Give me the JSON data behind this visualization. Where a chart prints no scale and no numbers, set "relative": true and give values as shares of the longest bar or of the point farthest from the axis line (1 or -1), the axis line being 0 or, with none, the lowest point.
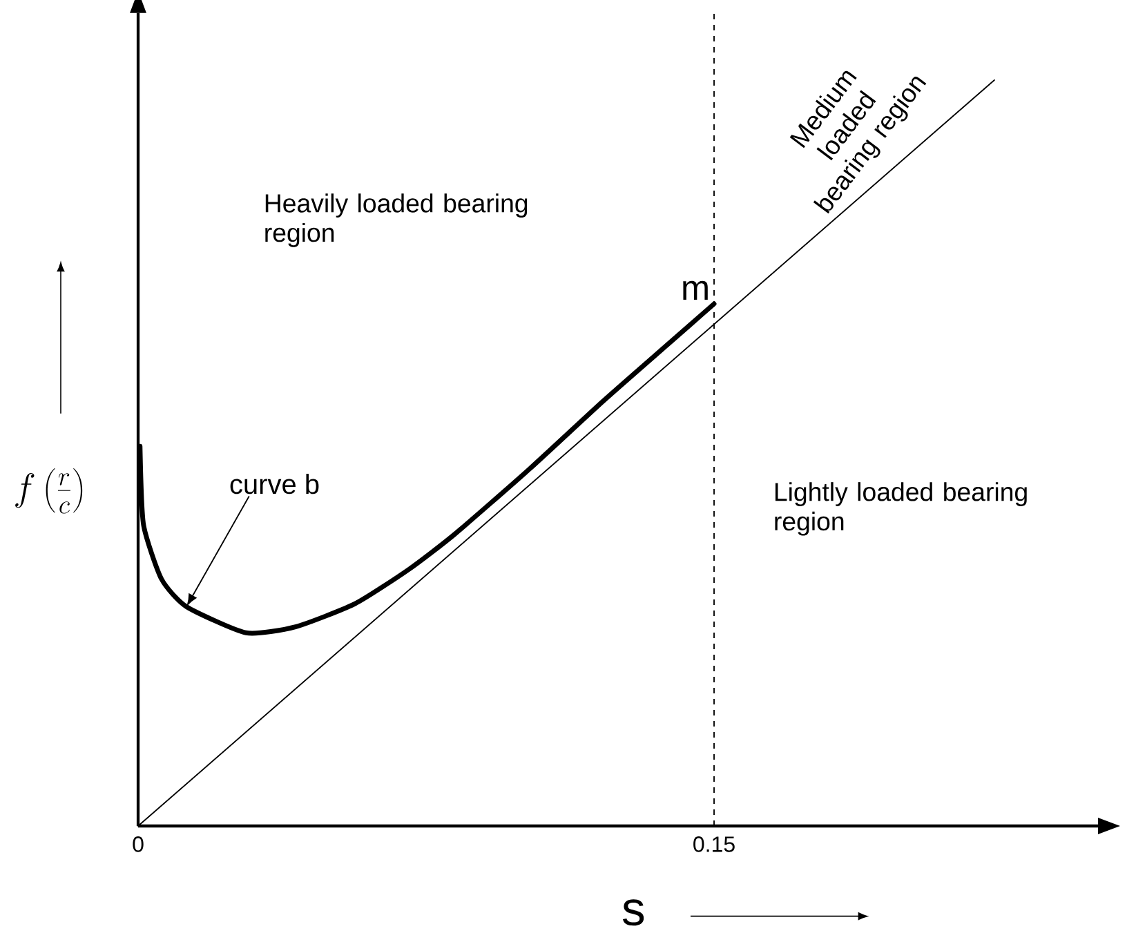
{
  "chart_data": {
    "type": "line",
    "xlabel": "s",
    "ylabel": "f\\left(\\frac{r}{c}\\right)",
    "relative": true,
    "xlim": [
      0,
      0.25
    ],
    "xticks": [
      0,
      0.15
    ],
    "series": [
      {
        "color": "#000000",
        "x": [
          0.0005,
          0.0014,
          0.0061,
          0.0126,
          0.0281,
          0.041,
          0.0565,
          0.0705,
          0.0824,
          0.1018,
          0.1212,
          0.1378,
          0.15
        ],
        "values": [
          0.509,
          0.404,
          0.331,
          0.294,
          0.259,
          0.267,
          0.298,
          0.344,
          0.391,
          0.478,
          0.57,
          0.645,
          0.7
        ]
      },
      {
        "color": "#000000",
        "x": [
          0,
          0.223
        ],
        "values": [
          0,
          1
        ]
      }
    ],
    "ref_lines": [
      {
        "axis": "x",
        "value": 0.15,
        "line_style": "dashed",
        "color": "#000000"
      }
    ],
    "annotations": [
      "Heavily loaded bearing region",
      "Lightly loaded bearing region",
      "Medium loaded bearing region",
      {
        "text": "m",
        "x": 0.15,
        "y": 0.7
      },
      {
        "text": "curve b",
        "x": 0.0126,
        "y": 0.294
      }
    ],
    "marker": "none",
    "line_style": "solid",
    "grid": false
  }
}
